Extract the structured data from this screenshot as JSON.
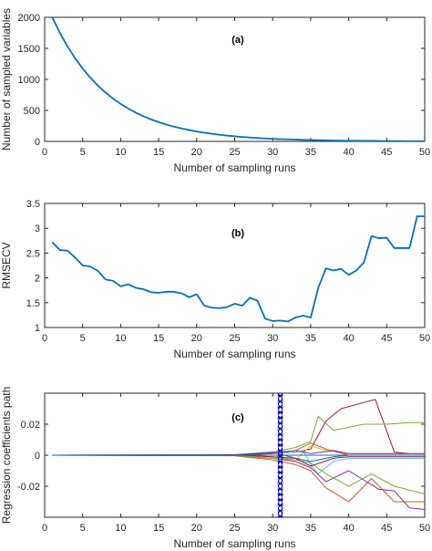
{
  "chart_data": [
    {
      "type": "line",
      "panel_label": "(a)",
      "xlabel": "Number of sampling runs",
      "ylabel": "Number of sampled variables",
      "xlim": [
        0,
        50
      ],
      "ylim": [
        0,
        2000
      ],
      "xticks": [
        0,
        5,
        10,
        15,
        20,
        25,
        30,
        35,
        40,
        45,
        50
      ],
      "yticks": [
        0,
        500,
        1000,
        1500,
        2000
      ],
      "series": [
        {
          "color": "#0072BD",
          "x": [
            1,
            2,
            3,
            4,
            5,
            6,
            7,
            8,
            9,
            10,
            11,
            12,
            13,
            14,
            15,
            16,
            17,
            18,
            19,
            20,
            21,
            22,
            23,
            24,
            25,
            26,
            27,
            28,
            29,
            30,
            31,
            32,
            33,
            34,
            35,
            36,
            37,
            38,
            39,
            40,
            41,
            42,
            43,
            44,
            45,
            46,
            47,
            48,
            49,
            50
          ],
          "y": [
            2000,
            1750,
            1532,
            1341,
            1174,
            1028,
            900,
            788,
            690,
            604,
            529,
            463,
            405,
            355,
            311,
            272,
            238,
            209,
            183,
            160,
            140,
            123,
            107,
            94,
            82,
            72,
            63,
            55,
            48,
            42,
            37,
            33,
            29,
            25,
            22,
            19,
            17,
            15,
            13,
            11,
            10,
            9,
            8,
            7,
            6,
            5,
            5,
            4,
            4,
            3
          ]
        }
      ]
    },
    {
      "type": "line",
      "panel_label": "(b)",
      "xlabel": "Number of sampling runs",
      "ylabel": "RMSECV",
      "xlim": [
        0,
        50
      ],
      "ylim": [
        1,
        3.5
      ],
      "xticks": [
        0,
        5,
        10,
        15,
        20,
        25,
        30,
        35,
        40,
        45,
        50
      ],
      "yticks": [
        1,
        1.5,
        2,
        2.5,
        3,
        3.5
      ],
      "series": [
        {
          "color": "#0072BD",
          "x": [
            1,
            2,
            3,
            4,
            5,
            6,
            7,
            8,
            9,
            10,
            11,
            12,
            13,
            14,
            15,
            16,
            17,
            18,
            19,
            20,
            21,
            22,
            23,
            24,
            25,
            26,
            27,
            28,
            29,
            30,
            31,
            32,
            33,
            34,
            35,
            36,
            37,
            38,
            39,
            40,
            41,
            42,
            43,
            44,
            45,
            46,
            47,
            48,
            49,
            50
          ],
          "y": [
            2.72,
            2.56,
            2.55,
            2.41,
            2.25,
            2.23,
            2.14,
            1.97,
            1.94,
            1.83,
            1.87,
            1.8,
            1.77,
            1.71,
            1.7,
            1.72,
            1.72,
            1.69,
            1.61,
            1.67,
            1.44,
            1.4,
            1.39,
            1.41,
            1.48,
            1.44,
            1.6,
            1.54,
            1.18,
            1.13,
            1.14,
            1.12,
            1.2,
            1.24,
            1.2,
            1.8,
            2.19,
            2.15,
            2.18,
            2.06,
            2.15,
            2.31,
            2.84,
            2.8,
            2.81,
            2.6,
            2.6,
            2.6,
            3.24,
            3.24
          ]
        }
      ]
    },
    {
      "type": "line",
      "panel_label": "(c)",
      "xlabel": "Number of sampling runs",
      "ylabel": "Regression coefficients path",
      "xlim": [
        0,
        50
      ],
      "ylim": [
        -0.04,
        0.04
      ],
      "xticks": [
        0,
        5,
        10,
        15,
        20,
        25,
        30,
        35,
        40,
        45,
        50
      ],
      "yticks": [
        -0.02,
        0,
        0.02
      ],
      "ytick_labels": [
        "-0.02",
        "0",
        "0.02"
      ],
      "marker_line": {
        "x": 31,
        "color": "#0000CC",
        "style": "asterisk-dashed"
      },
      "series": [
        {
          "color": "#A2142F",
          "x": [
            1,
            25,
            30,
            33,
            35,
            37,
            39,
            43.5,
            46,
            48
          ],
          "y": [
            0,
            0.0003,
            0.001,
            0.002,
            0.004,
            0.022,
            0.03,
            0.036,
            0.002,
            0.001
          ]
        },
        {
          "color": "#77AC30",
          "x": [
            1,
            25,
            30,
            33,
            35,
            36,
            38,
            40,
            42,
            45,
            48,
            50
          ],
          "y": [
            0,
            0.0004,
            0.002,
            0.005,
            0.009,
            0.025,
            0.016,
            0.018,
            0.02,
            0.02,
            0.021,
            0.021
          ]
        },
        {
          "color": "#D95319",
          "x": [
            1,
            25,
            30,
            33,
            35,
            37,
            40,
            43,
            46,
            50
          ],
          "y": [
            0,
            -0.0004,
            -0.003,
            -0.006,
            -0.01,
            -0.021,
            -0.03,
            -0.015,
            -0.03,
            -0.03
          ]
        },
        {
          "color": "#7E2F8E",
          "x": [
            1,
            25,
            30,
            33,
            35,
            37,
            40,
            44,
            46,
            48,
            50
          ],
          "y": [
            0,
            -0.0003,
            -0.002,
            -0.004,
            -0.008,
            -0.017,
            -0.01,
            -0.022,
            -0.023,
            -0.034,
            -0.035
          ]
        },
        {
          "color": "#77AC30",
          "x": [
            1,
            25,
            30,
            33,
            35,
            37,
            40,
            43,
            46,
            50
          ],
          "y": [
            0,
            -0.0002,
            -0.002,
            -0.003,
            -0.005,
            -0.012,
            -0.02,
            -0.012,
            -0.02,
            -0.025
          ]
        },
        {
          "color": "#4DBEEE",
          "x": [
            1,
            25,
            30,
            33,
            34,
            35,
            36,
            38,
            40,
            50
          ],
          "y": [
            0,
            0.0002,
            0.001,
            0.002,
            0.003,
            -0.006,
            -0.012,
            -0.004,
            -0.002,
            -0.002
          ]
        },
        {
          "color": "#EDB120",
          "x": [
            1,
            25,
            30,
            33,
            35,
            37,
            40,
            50
          ],
          "y": [
            0,
            0.0002,
            -0.001,
            -0.003,
            0.006,
            0.003,
            0.001,
            0.001
          ]
        },
        {
          "color": "#0072BD",
          "x": [
            1,
            25,
            30,
            33,
            35,
            38,
            40,
            50
          ],
          "y": [
            0,
            0.0003,
            0.002,
            -0.002,
            -0.004,
            -0.001,
            0,
            0
          ]
        },
        {
          "color": "#D95319",
          "x": [
            1,
            25,
            30,
            33,
            35,
            37,
            40,
            50
          ],
          "y": [
            0,
            -0.0003,
            0.001,
            0.003,
            0.008,
            0.004,
            0,
            0
          ]
        },
        {
          "color": "#A2142F",
          "x": [
            1,
            25,
            30,
            33,
            35,
            38,
            40,
            50
          ],
          "y": [
            0,
            0.0002,
            -0.001,
            -0.002,
            -0.007,
            -0.002,
            -0.001,
            -0.001
          ]
        },
        {
          "color": "#7E2F8E",
          "x": [
            1,
            25,
            30,
            33,
            35,
            38,
            40,
            50
          ],
          "y": [
            0,
            0.0001,
            0.0015,
            0.003,
            0.001,
            0.003,
            0.001,
            0.001
          ]
        },
        {
          "color": "#0072BD",
          "x": [
            1,
            25,
            30,
            33,
            35,
            38,
            40,
            50
          ],
          "y": [
            0,
            0,
            0,
            0,
            0,
            0,
            0,
            0
          ]
        }
      ]
    }
  ]
}
